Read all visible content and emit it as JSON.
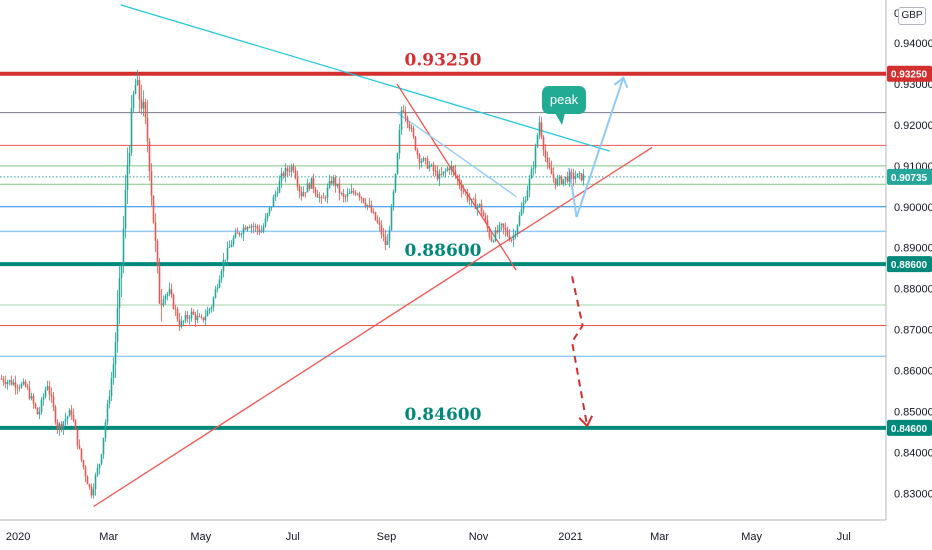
{
  "chart_data": {
    "type": "candlestick",
    "symbol_currency": "GBP",
    "price_axis": {
      "ticks": [
        "0.83000",
        "0.84000",
        "0.85000",
        "0.86000",
        "0.87000",
        "0.88000",
        "0.89000",
        "0.90000",
        "0.91000",
        "0.92000",
        "0.93000",
        "0.94000"
      ],
      "top_partial_label": "0",
      "ylim": [
        0.8235,
        0.9505
      ]
    },
    "time_axis": {
      "ticks": [
        {
          "label": "2020",
          "date": "2020-01-01"
        },
        {
          "label": "Mar",
          "date": "2020-03-01"
        },
        {
          "label": "May",
          "date": "2020-05-01"
        },
        {
          "label": "Jul",
          "date": "2020-07-01"
        },
        {
          "label": "Sep",
          "date": "2020-09-01"
        },
        {
          "label": "Nov",
          "date": "2020-11-01"
        },
        {
          "label": "2021",
          "date": "2021-01-01"
        },
        {
          "label": "Mar",
          "date": "2021-03-01"
        },
        {
          "label": "May",
          "date": "2021-05-01"
        },
        {
          "label": "Jul",
          "date": "2021-07-01"
        }
      ],
      "range": [
        "2019-12-20",
        "2021-07-29"
      ]
    },
    "price_path": [
      {
        "date": "2019-12-20",
        "price": 0.858
      },
      {
        "date": "2020-01-06",
        "price": 0.856
      },
      {
        "date": "2020-01-14",
        "price": 0.849
      },
      {
        "date": "2020-01-20",
        "price": 0.857
      },
      {
        "date": "2020-01-27",
        "price": 0.846
      },
      {
        "date": "2020-02-05",
        "price": 0.85
      },
      {
        "date": "2020-02-11",
        "price": 0.839
      },
      {
        "date": "2020-02-18",
        "price": 0.83
      },
      {
        "date": "2020-02-24",
        "price": 0.838
      },
      {
        "date": "2020-03-04",
        "price": 0.862
      },
      {
        "date": "2020-03-09",
        "price": 0.885
      },
      {
        "date": "2020-03-13",
        "price": 0.91
      },
      {
        "date": "2020-03-18",
        "price": 0.93
      },
      {
        "date": "2020-03-23",
        "price": 0.925
      },
      {
        "date": "2020-03-27",
        "price": 0.915
      },
      {
        "date": "2020-04-03",
        "price": 0.878
      },
      {
        "date": "2020-04-10",
        "price": 0.879
      },
      {
        "date": "2020-04-17",
        "price": 0.871
      },
      {
        "date": "2020-04-24",
        "price": 0.874
      },
      {
        "date": "2020-05-01",
        "price": 0.872
      },
      {
        "date": "2020-05-08",
        "price": 0.876
      },
      {
        "date": "2020-05-15",
        "price": 0.886
      },
      {
        "date": "2020-05-22",
        "price": 0.892
      },
      {
        "date": "2020-06-01",
        "price": 0.896
      },
      {
        "date": "2020-06-10",
        "price": 0.894
      },
      {
        "date": "2020-06-17",
        "price": 0.901
      },
      {
        "date": "2020-06-24",
        "price": 0.908
      },
      {
        "date": "2020-07-01",
        "price": 0.91
      },
      {
        "date": "2020-07-06",
        "price": 0.903
      },
      {
        "date": "2020-07-13",
        "price": 0.906
      },
      {
        "date": "2020-07-20",
        "price": 0.901
      },
      {
        "date": "2020-07-27",
        "price": 0.907
      },
      {
        "date": "2020-08-03",
        "price": 0.902
      },
      {
        "date": "2020-08-12",
        "price": 0.904
      },
      {
        "date": "2020-08-20",
        "price": 0.9
      },
      {
        "date": "2020-08-27",
        "price": 0.895
      },
      {
        "date": "2020-09-01",
        "price": 0.89
      },
      {
        "date": "2020-09-07",
        "price": 0.908
      },
      {
        "date": "2020-09-11",
        "price": 0.925
      },
      {
        "date": "2020-09-16",
        "price": 0.92
      },
      {
        "date": "2020-09-22",
        "price": 0.912
      },
      {
        "date": "2020-09-29",
        "price": 0.91
      },
      {
        "date": "2020-10-06",
        "price": 0.907
      },
      {
        "date": "2020-10-13",
        "price": 0.91
      },
      {
        "date": "2020-10-20",
        "price": 0.905
      },
      {
        "date": "2020-10-27",
        "price": 0.901
      },
      {
        "date": "2020-11-02",
        "price": 0.9
      },
      {
        "date": "2020-11-09",
        "price": 0.892
      },
      {
        "date": "2020-11-16",
        "price": 0.895
      },
      {
        "date": "2020-11-23",
        "price": 0.892
      },
      {
        "date": "2020-11-30",
        "price": 0.9
      },
      {
        "date": "2020-12-07",
        "price": 0.91
      },
      {
        "date": "2020-12-11",
        "price": 0.921
      },
      {
        "date": "2020-12-16",
        "price": 0.91
      },
      {
        "date": "2020-12-22",
        "price": 0.906
      },
      {
        "date": "2020-12-31",
        "price": 0.9073
      }
    ],
    "horizontal_levels": [
      {
        "price": 0.9325,
        "color": "#d32f2f",
        "width": 4,
        "axis_label": "0.93250",
        "annotation": "0.93250"
      },
      {
        "price": 0.923,
        "color": "#787b86",
        "width": 1
      },
      {
        "price": 0.915,
        "color": "#ef5350",
        "width": 1
      },
      {
        "price": 0.91,
        "color": "#81c784",
        "width": 1
      },
      {
        "price": 0.9073,
        "color": "#26a69a",
        "width": 1,
        "dotted": true,
        "axis_label": "0.90735",
        "axis_color": "#26a69a"
      },
      {
        "price": 0.9055,
        "color": "#81c784",
        "width": 1
      },
      {
        "price": 0.9,
        "color": "#1e88e5",
        "width": 1
      },
      {
        "price": 0.894,
        "color": "#90caf9",
        "width": 1.5
      },
      {
        "price": 0.886,
        "color": "#00897b",
        "width": 4,
        "axis_label": "0.88600",
        "annotation": "0.88600"
      },
      {
        "price": 0.876,
        "color": "#a5d6a7",
        "width": 1
      },
      {
        "price": 0.871,
        "color": "#ef5350",
        "width": 1
      },
      {
        "price": 0.8635,
        "color": "#64b5f6",
        "width": 1
      },
      {
        "price": 0.846,
        "color": "#00897b",
        "width": 4,
        "axis_label": "0.84600",
        "annotation": "0.84600"
      }
    ],
    "trendlines": [
      {
        "from": {
          "date": "2020-03-09",
          "price": 0.9493
        },
        "to": {
          "date": "2021-01-27",
          "price": 0.9136
        },
        "color": "#26c6da"
      },
      {
        "from": {
          "date": "2020-02-20",
          "price": 0.8268
        },
        "to": {
          "date": "2021-02-24",
          "price": 0.9145
        },
        "color": "#ef5350"
      },
      {
        "from": {
          "date": "2020-09-08",
          "price": 0.93
        },
        "to": {
          "date": "2020-11-26",
          "price": 0.8845
        },
        "color": "#ef5350"
      },
      {
        "from": {
          "date": "2020-09-08",
          "price": 0.923
        },
        "to": {
          "date": "2020-11-26",
          "price": 0.9025
        },
        "color": "#90caf9"
      }
    ],
    "annotation_badge": "peak"
  }
}
